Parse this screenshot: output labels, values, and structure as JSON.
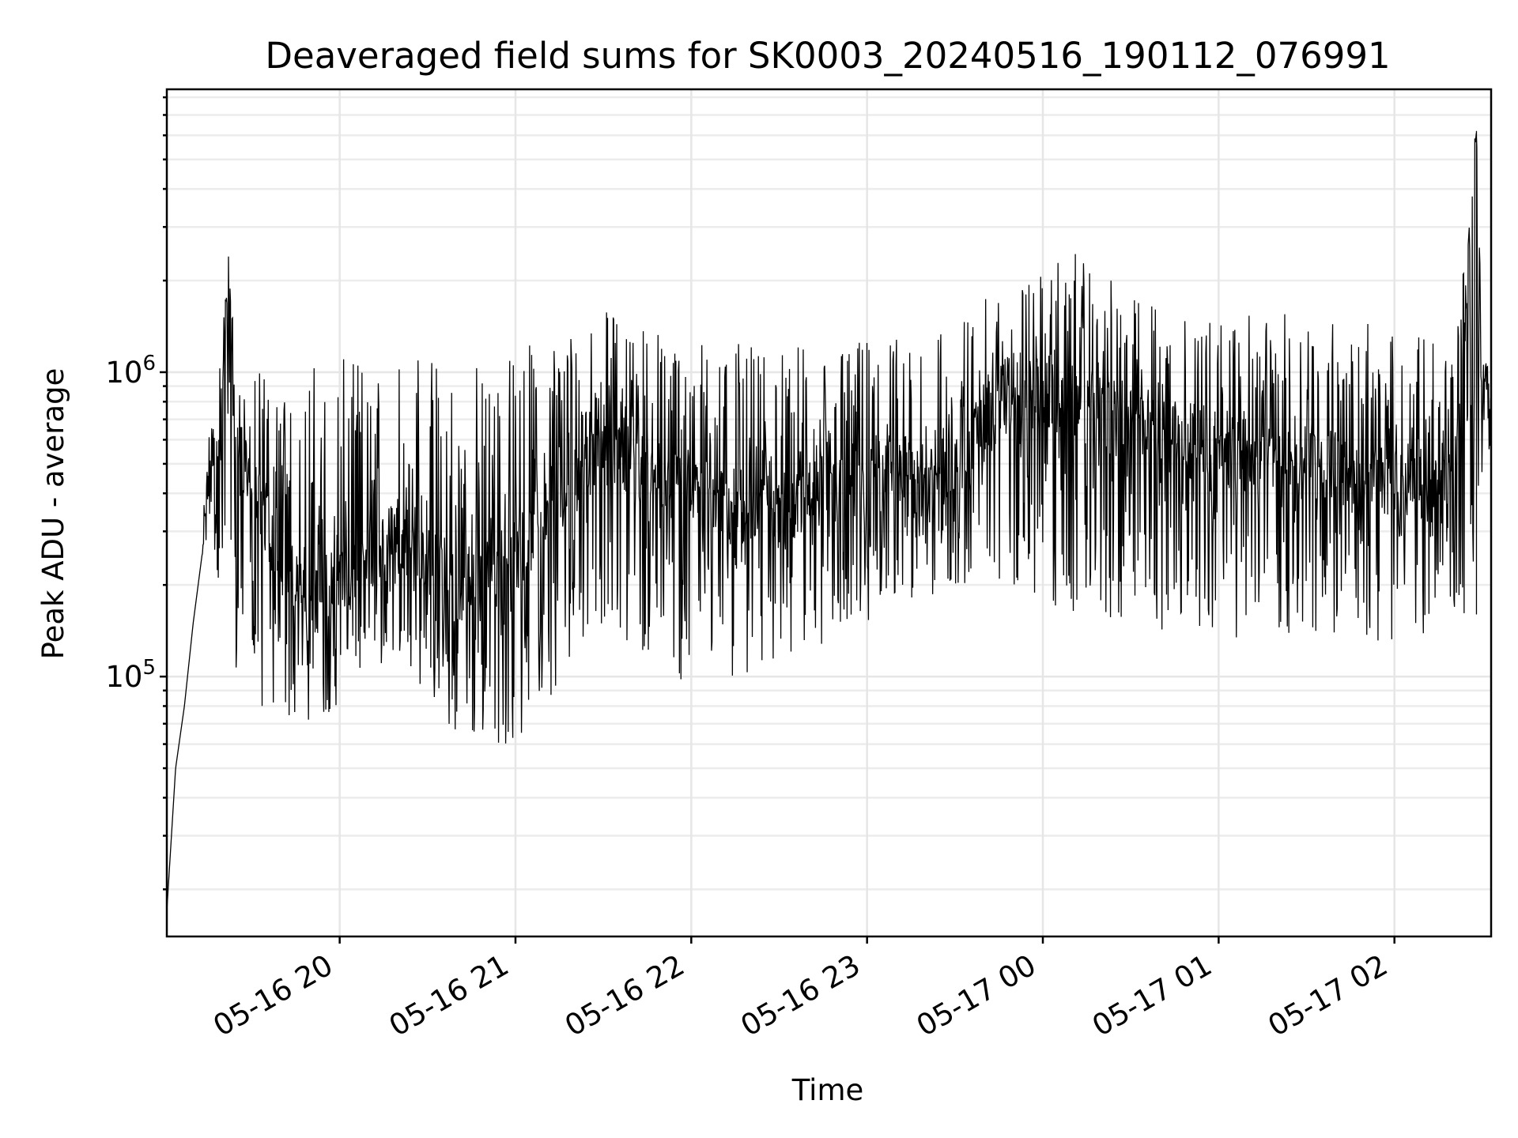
{
  "chart_data": {
    "type": "line",
    "title": "Deaveraged field sums for SK0003_20240516_190112_076991",
    "xlabel": "Time",
    "ylabel": "Peak ADU - average",
    "y_scale": "log",
    "grid": true,
    "grid_minor": true,
    "line_color": "#000000",
    "xlim": [
      "2024-05-16 19:01",
      "2024-05-17 02:33"
    ],
    "ylim": [
      14000,
      8500000
    ],
    "x_ticks": [
      "2024-05-16 20:00",
      "2024-05-16 21:00",
      "2024-05-16 22:00",
      "2024-05-16 23:00",
      "2024-05-17 00:00",
      "2024-05-17 01:00",
      "2024-05-17 02:00"
    ],
    "x_tick_labels": [
      "05-16 20",
      "05-16 21",
      "05-16 22",
      "05-16 23",
      "05-17 00",
      "05-17 01",
      "05-17 02"
    ],
    "y_ticks": [
      {
        "value": 100000,
        "base": "10",
        "exp": "5"
      },
      {
        "value": 1000000,
        "base": "10",
        "exp": "6"
      }
    ],
    "series": [
      {
        "x": [
          "2024-05-16 19:01",
          "2024-05-16 19:04",
          "2024-05-16 19:07",
          "2024-05-16 19:10",
          "2024-05-16 19:13",
          "2024-05-16 19:16",
          "2024-05-16 19:19",
          "2024-05-16 19:22",
          "2024-05-16 19:25",
          "2024-05-16 19:30",
          "2024-05-16 19:40",
          "2024-05-16 19:50",
          "2024-05-16 20:00",
          "2024-05-16 20:20",
          "2024-05-16 20:40",
          "2024-05-16 21:00",
          "2024-05-16 21:30",
          "2024-05-16 22:00",
          "2024-05-16 22:30",
          "2024-05-16 23:00",
          "2024-05-16 23:30",
          "2024-05-16 23:50",
          "2024-05-17 00:10",
          "2024-05-17 00:30",
          "2024-05-17 01:00",
          "2024-05-17 01:30",
          "2024-05-17 02:00",
          "2024-05-17 02:20",
          "2024-05-17 02:28",
          "2024-05-17 02:30",
          "2024-05-17 02:33"
        ],
        "values": [
          17000,
          50000,
          80000,
          150000,
          250000,
          500000,
          700000,
          1900000,
          600000,
          400000,
          250000,
          180000,
          200000,
          300000,
          200000,
          250000,
          600000,
          400000,
          350000,
          450000,
          500000,
          900000,
          800000,
          700000,
          550000,
          500000,
          450000,
          400000,
          6200000,
          900000,
          700000
        ],
        "band_low": [
          17000,
          50000,
          80000,
          150000,
          250000,
          280000,
          200000,
          90000,
          80000,
          70000,
          70000,
          70000,
          80000,
          120000,
          60000,
          60000,
          150000,
          90000,
          110000,
          150000,
          200000,
          200000,
          150000,
          150000,
          130000,
          140000,
          120000,
          160000,
          160000,
          280000,
          220000
        ],
        "band_high": [
          17000,
          50000,
          80000,
          150000,
          250000,
          800000,
          1500000,
          2200000,
          1000000,
          1000000,
          1000000,
          1100000,
          1100000,
          1200000,
          1100000,
          1200000,
          1600000,
          1300000,
          1200000,
          1300000,
          1500000,
          2000000,
          2500000,
          1800000,
          1500000,
          1600000,
          1400000,
          1300000,
          6200000,
          1300000,
          1100000
        ]
      }
    ]
  }
}
